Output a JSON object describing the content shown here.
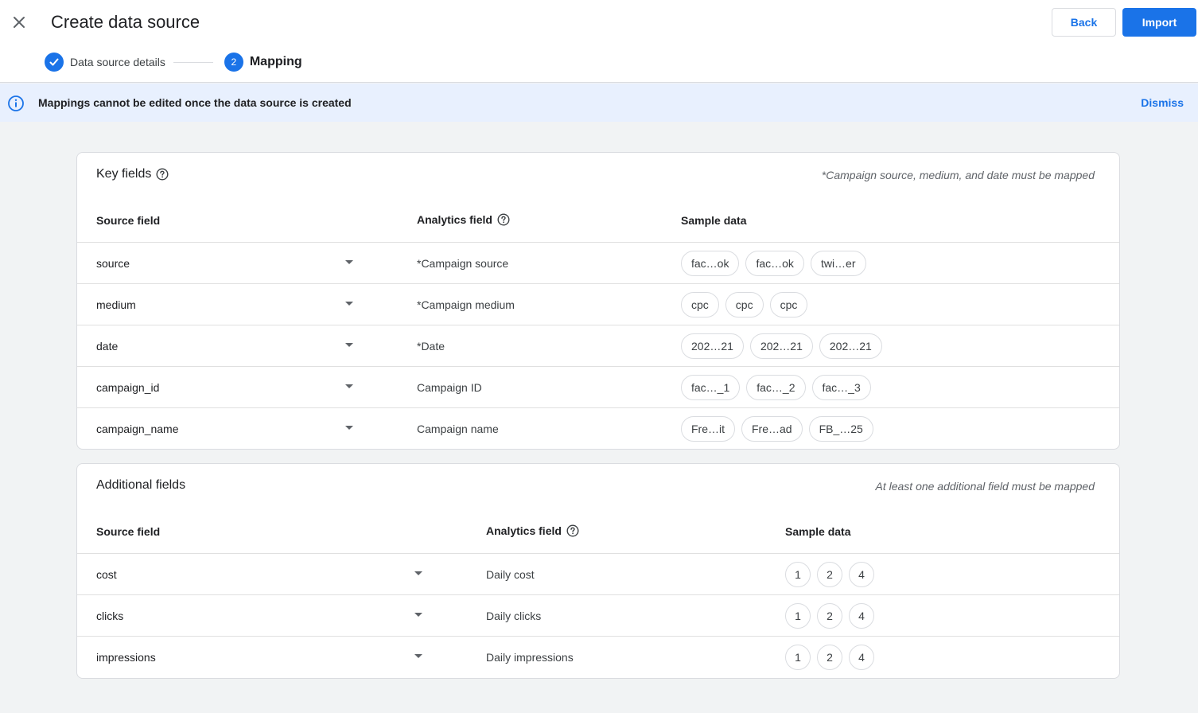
{
  "header": {
    "title": "Create data source",
    "back_label": "Back",
    "import_label": "Import",
    "steps": [
      {
        "label": "Data source details",
        "state": "done"
      },
      {
        "label": "Mapping",
        "number": "2",
        "state": "active"
      }
    ]
  },
  "banner": {
    "text": "Mappings cannot be edited once the data source is created",
    "dismiss_label": "Dismiss"
  },
  "key_fields": {
    "title": "Key fields",
    "note": "*Campaign source, medium, and date must be mapped",
    "headers": {
      "source": "Source field",
      "analytics": "Analytics field",
      "sample": "Sample data"
    },
    "rows": [
      {
        "source": "source",
        "analytics": "*Campaign source",
        "samples": [
          "fac…ok",
          "fac…ok",
          "twi…er"
        ]
      },
      {
        "source": "medium",
        "analytics": "*Campaign medium",
        "samples": [
          "cpc",
          "cpc",
          "cpc"
        ]
      },
      {
        "source": "date",
        "analytics": "*Date",
        "samples": [
          "202…21",
          "202…21",
          "202…21"
        ]
      },
      {
        "source": "campaign_id",
        "analytics": "Campaign ID",
        "samples": [
          "fac…_1",
          "fac…_2",
          "fac…_3"
        ]
      },
      {
        "source": "campaign_name",
        "analytics": "Campaign name",
        "samples": [
          "Fre…it",
          "Fre…ad",
          "FB_…25"
        ]
      }
    ]
  },
  "additional_fields": {
    "title": "Additional fields",
    "note": "At least one additional field must be mapped",
    "headers": {
      "source": "Source field",
      "analytics": "Analytics field",
      "sample": "Sample data"
    },
    "rows": [
      {
        "source": "cost",
        "analytics": "Daily cost",
        "samples": [
          "1",
          "2",
          "4"
        ]
      },
      {
        "source": "clicks",
        "analytics": "Daily clicks",
        "samples": [
          "1",
          "2",
          "4"
        ]
      },
      {
        "source": "impressions",
        "analytics": "Daily impressions",
        "samples": [
          "1",
          "2",
          "4"
        ]
      }
    ]
  },
  "colors": {
    "accent": "#1a73e8",
    "banner_bg": "#e8f0fe",
    "page_bg": "#f1f3f4"
  }
}
